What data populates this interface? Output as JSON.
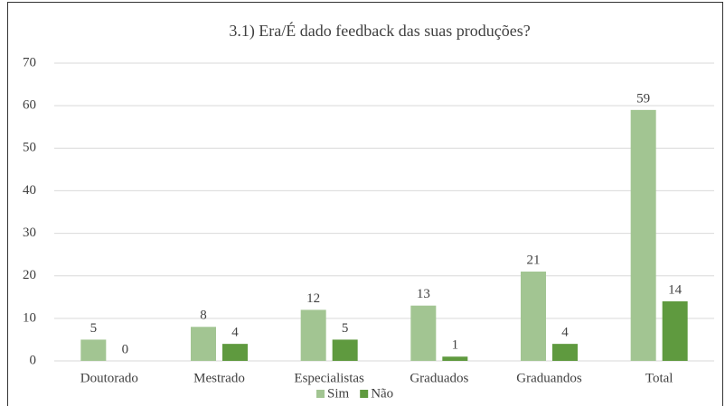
{
  "chart_data": {
    "type": "bar",
    "title": "3.1) Era/É dado feedback das suas produções?",
    "categories": [
      "Doutorado",
      "Mestrado",
      "Especialistas",
      "Graduados",
      "Graduandos",
      "Total"
    ],
    "series": [
      {
        "name": "Sim",
        "color": "#a2c592",
        "values": [
          5,
          8,
          12,
          13,
          21,
          59
        ]
      },
      {
        "name": "Não",
        "color": "#5f9a3f",
        "values": [
          0,
          4,
          5,
          1,
          4,
          14
        ]
      }
    ],
    "ylim": [
      0,
      70
    ],
    "yticks": [
      0,
      10,
      20,
      30,
      40,
      50,
      60,
      70
    ],
    "grid": true,
    "legend": "bottom"
  }
}
